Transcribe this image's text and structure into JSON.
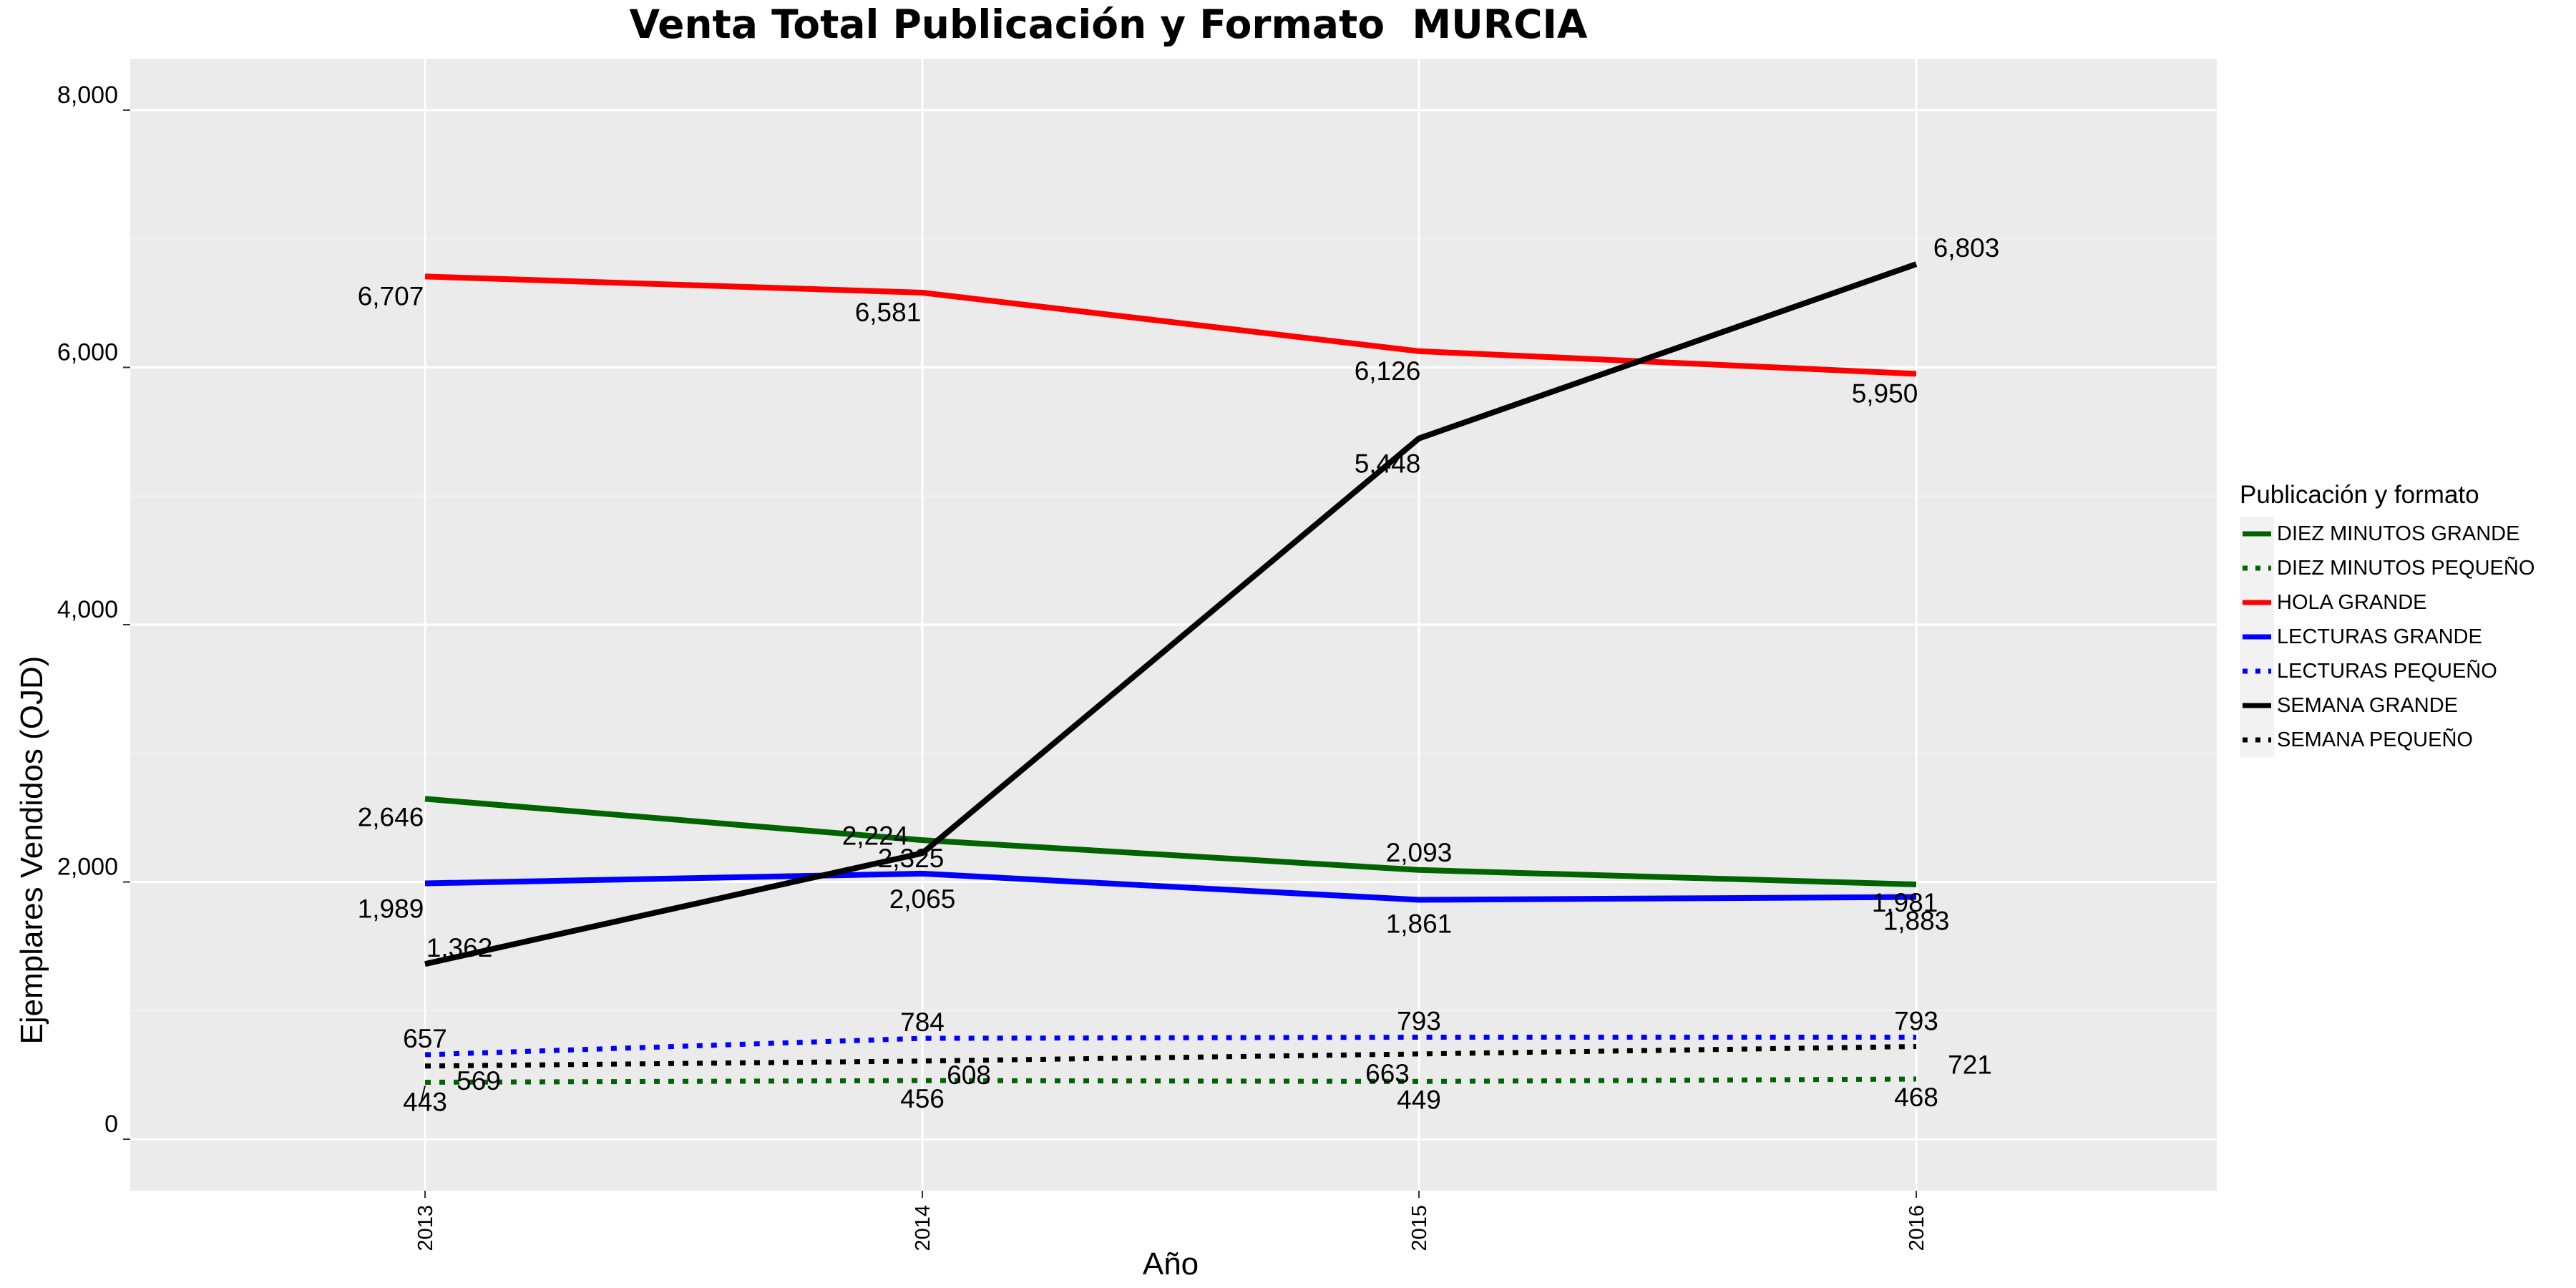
{
  "chart_data": {
    "type": "line",
    "title": "Venta Total Publicación y Formato  MURCIA",
    "xlabel": "Año",
    "ylabel": "Ejemplares Vendidos (OJD)",
    "x": [
      "2013",
      "2014",
      "2015",
      "2016"
    ],
    "ylim": [
      -400,
      8400
    ],
    "yticks": [
      "0",
      "2,000",
      "4,000",
      "6,000",
      "8,000"
    ],
    "grid": true,
    "legend_title": "Publicación y formato",
    "legend_position": "right",
    "series": [
      {
        "name": "DIEZ MINUTOS GRANDE",
        "color": "#006400",
        "style": "solid",
        "values": [
          2646,
          2325,
          2093,
          1981
        ],
        "labels": [
          "2,646",
          "2,325",
          "2,093",
          "1,981"
        ]
      },
      {
        "name": "DIEZ MINUTOS PEQUEÑO",
        "color": "#006400",
        "style": "dotted",
        "values": [
          443,
          456,
          449,
          468
        ],
        "labels": [
          "443",
          "456",
          "449",
          "468"
        ]
      },
      {
        "name": "HOLA GRANDE",
        "color": "#ff0000",
        "style": "solid",
        "values": [
          6707,
          6581,
          6126,
          5950
        ],
        "labels": [
          "6,707",
          "6,581",
          "6,126",
          "5,950"
        ]
      },
      {
        "name": "LECTURAS GRANDE",
        "color": "#0000ff",
        "style": "solid",
        "values": [
          1989,
          2065,
          1861,
          1883
        ],
        "labels": [
          "1,989",
          "2,065",
          "1,861",
          "1,883"
        ]
      },
      {
        "name": "LECTURAS PEQUEÑO",
        "color": "#0000ff",
        "style": "dotted",
        "values": [
          657,
          784,
          793,
          793
        ],
        "labels": [
          "657",
          "784",
          "793",
          "793"
        ]
      },
      {
        "name": "SEMANA GRANDE",
        "color": "#000000",
        "style": "solid",
        "values": [
          1362,
          2224,
          5448,
          6803
        ],
        "labels": [
          "1,362",
          "2,224",
          "5,448",
          "6,803"
        ]
      },
      {
        "name": "SEMANA PEQUEÑO",
        "color": "#000000",
        "style": "dotted",
        "values": [
          569,
          608,
          663,
          721
        ],
        "labels": [
          "569",
          "608",
          "663",
          "721"
        ]
      }
    ]
  }
}
